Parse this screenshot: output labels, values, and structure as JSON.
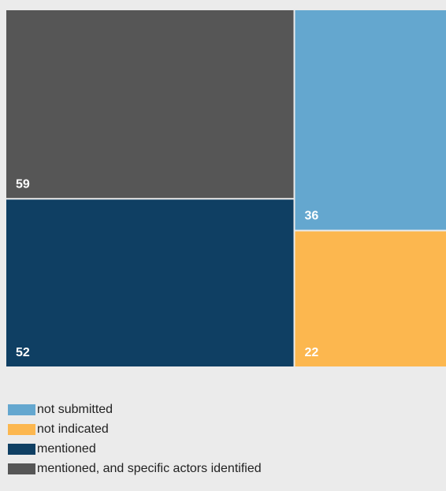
{
  "chart_data": {
    "type": "treemap",
    "title": "",
    "items": [
      {
        "name": "mentioned, and specific actors identified",
        "value": 59,
        "label": "59",
        "color": "#565656"
      },
      {
        "name": "mentioned",
        "value": 52,
        "label": "52",
        "color": "#0f3f63"
      },
      {
        "name": "not submitted",
        "value": 36,
        "label": "36",
        "color": "#64a7cf"
      },
      {
        "name": "not indicated",
        "value": 22,
        "label": "22",
        "color": "#fcb74f"
      }
    ],
    "legend": {
      "placement": "bottom-left",
      "entries": [
        {
          "label": "not submitted",
          "color": "#64a7cf"
        },
        {
          "label": "not indicated",
          "color": "#fcb74f"
        },
        {
          "label": "mentioned",
          "color": "#0f3f63"
        },
        {
          "label": "mentioned, and specific actors identified",
          "color": "#565656"
        }
      ]
    }
  }
}
